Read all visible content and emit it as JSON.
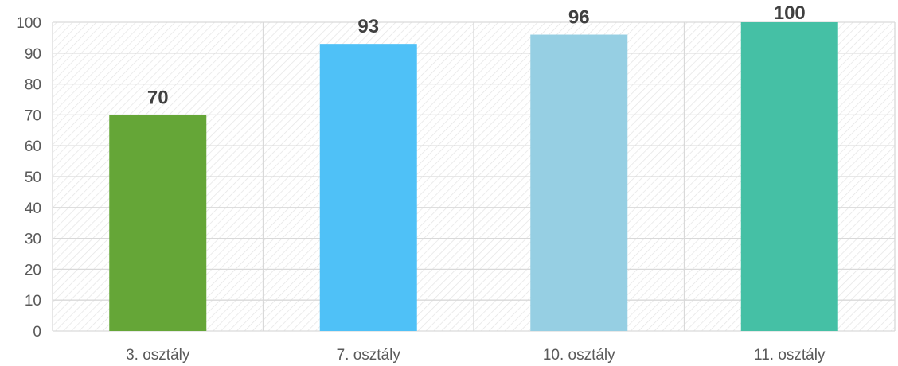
{
  "chart_data": {
    "type": "bar",
    "categories": [
      "3. osztály",
      "7. osztály",
      "10. osztály",
      "11. osztály"
    ],
    "values": [
      70,
      93,
      96,
      100
    ],
    "data_labels": [
      "70",
      "93",
      "96",
      "100"
    ],
    "bar_colors": [
      "#65A637",
      "#4FC1F7",
      "#96CFE3",
      "#45C0A5"
    ],
    "ylim": [
      0,
      100
    ],
    "yticks": [
      0,
      10,
      20,
      30,
      40,
      50,
      60,
      70,
      80,
      90,
      100
    ],
    "ytick_labels": [
      "0",
      "10",
      "20",
      "30",
      "40",
      "50",
      "60",
      "70",
      "80",
      "90",
      "100"
    ],
    "grid": true,
    "plot_background": "hatched",
    "title": "",
    "xlabel": "",
    "ylabel": ""
  }
}
